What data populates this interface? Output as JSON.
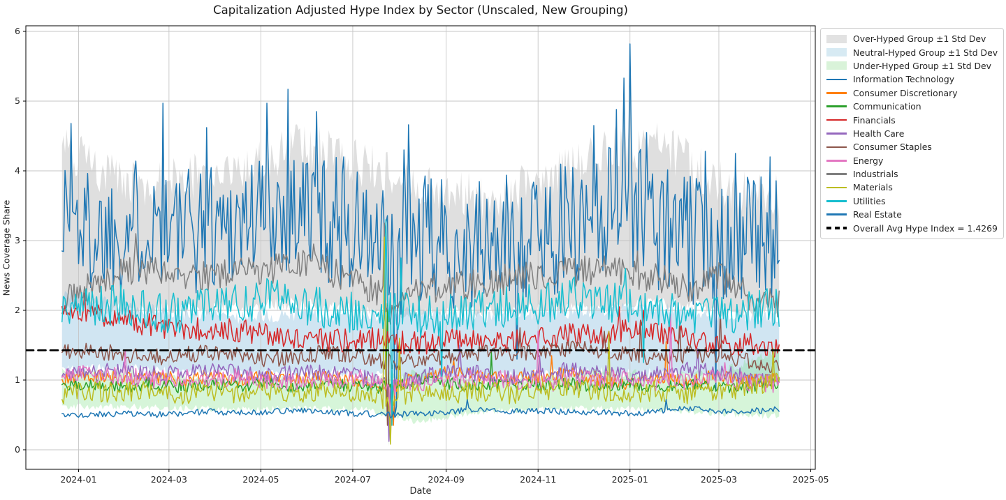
{
  "chart_data": {
    "type": "line",
    "title": "Capitalization Adjusted Hype Index by Sector (Unscaled, New Grouping)",
    "xlabel": "Date",
    "ylabel": "News Coverage Share",
    "grid": true,
    "legend_position": "outside-upper-right",
    "x_start": "2023-12-21",
    "x_end": "2025-04-10",
    "xlim": [
      "2023-11-27",
      "2025-05-04"
    ],
    "ylim": [
      -0.28,
      6.08
    ],
    "y_ticks": [
      0,
      1,
      2,
      3,
      4,
      5,
      6
    ],
    "x_ticks": [
      {
        "label": "2024-01",
        "date": "2024-01-01"
      },
      {
        "label": "2024-03",
        "date": "2024-03-01"
      },
      {
        "label": "2024-05",
        "date": "2024-05-01"
      },
      {
        "label": "2024-07",
        "date": "2024-07-01"
      },
      {
        "label": "2024-09",
        "date": "2024-09-01"
      },
      {
        "label": "2024-11",
        "date": "2024-11-01"
      },
      {
        "label": "2025-01",
        "date": "2025-01-01"
      },
      {
        "label": "2025-03",
        "date": "2025-03-01"
      },
      {
        "label": "2025-05",
        "date": "2025-05-01"
      }
    ],
    "avg_line": {
      "label": "Overall Avg Hype Index = 1.4269",
      "value": 1.4269,
      "color": "#000000",
      "style": "dashed"
    },
    "noise_seed": 1337,
    "bands": [
      {
        "name": "Over-Hyped Group ±1 Std Dev",
        "legend_color": "#e2e2e2",
        "fill": "rgba(130,130,130,0.26)",
        "lower": [
          2.0,
          2.05,
          2.0,
          2.05,
          2.1,
          2.0,
          1.95,
          2.0,
          2.0,
          2.05,
          2.1,
          2.0,
          1.95
        ],
        "upper": [
          4.4,
          3.8,
          3.9,
          4.0,
          4.4,
          4.1,
          3.8,
          3.6,
          3.8,
          4.3,
          4.4,
          3.8,
          3.6
        ],
        "lower_noise": 0.1,
        "upper_noise": 0.35,
        "lower_spikes": [
          [
            "2024-07-28",
            1.35
          ]
        ],
        "upper_spikes": [
          [
            "2023-12-27",
            4.55
          ],
          [
            "2024-02-26",
            4.8
          ],
          [
            "2024-05-19",
            4.9
          ],
          [
            "2024-07-22",
            3.6
          ],
          [
            "2024-12-28",
            5.15
          ],
          [
            "2025-01-01",
            5.5
          ]
        ]
      },
      {
        "name": "Neutral-Hyped Group ±1 Std Dev",
        "legend_color": "#d7eaf3",
        "fill": "rgba(137,190,222,0.40)",
        "lower": [
          1.15,
          1.18,
          1.12,
          1.1,
          1.12,
          1.1,
          1.0,
          1.05,
          1.1,
          1.12,
          1.1,
          1.05,
          1.0
        ],
        "upper": [
          2.25,
          2.05,
          1.95,
          1.9,
          1.95,
          1.9,
          2.0,
          1.9,
          1.95,
          2.0,
          2.05,
          1.95,
          1.9
        ],
        "lower_noise": 0.07,
        "upper_noise": 0.1,
        "lower_spikes": [
          [
            "2024-07-27",
            0.45
          ]
        ],
        "upper_spikes": [
          [
            "2024-07-25",
            2.4
          ]
        ]
      },
      {
        "name": "Under-Hyped Group ±1 Std Dev",
        "legend_color": "#d9f3d9",
        "fill": "rgba(120,222,130,0.30)",
        "lower": [
          0.62,
          0.62,
          0.6,
          0.58,
          0.6,
          0.58,
          0.4,
          0.55,
          0.58,
          0.6,
          0.58,
          0.52,
          0.48
        ],
        "upper": [
          1.12,
          1.1,
          1.05,
          1.0,
          1.02,
          1.0,
          1.1,
          1.0,
          1.05,
          1.15,
          1.05,
          1.1,
          1.45
        ],
        "lower_noise": 0.05,
        "upper_noise": 0.07,
        "lower_spikes": [
          [
            "2024-07-25",
            0.05
          ]
        ],
        "upper_spikes": [
          [
            "2024-07-25",
            1.35
          ]
        ]
      }
    ],
    "series": [
      {
        "name": "Information Technology",
        "color": "#1f77b4",
        "noise": 0.95,
        "anchors": [
          3.45,
          3.1,
          3.2,
          3.35,
          3.1,
          3.25,
          3.3,
          3.45,
          3.5,
          3.3,
          3.1,
          2.7,
          3.0,
          2.95,
          2.9,
          3.0,
          3.1,
          3.2,
          3.45,
          3.6,
          3.2,
          3.0,
          3.1,
          3.0,
          3.05
        ],
        "spikes": [
          [
            "2023-12-27",
            4.68
          ],
          [
            "2024-02-26",
            4.97
          ],
          [
            "2024-03-26",
            4.62
          ],
          [
            "2024-05-05",
            4.97
          ],
          [
            "2024-05-19",
            5.17
          ],
          [
            "2024-06-07",
            4.85
          ],
          [
            "2024-06-25",
            4.2
          ],
          [
            "2024-07-29",
            0.5
          ],
          [
            "2024-07-30",
            0.62
          ],
          [
            "2024-08-04",
            4.3
          ],
          [
            "2024-08-07",
            4.66
          ],
          [
            "2024-10-18",
            1.3
          ],
          [
            "2024-12-08",
            4.65
          ],
          [
            "2024-12-23",
            4.88
          ],
          [
            "2024-12-28",
            5.33
          ],
          [
            "2025-01-01",
            5.82
          ],
          [
            "2025-01-12",
            4.55
          ],
          [
            "2025-02-20",
            4.28
          ],
          [
            "2025-02-27",
            0.85
          ],
          [
            "2025-03-12",
            4.25
          ],
          [
            "2025-04-04",
            4.2
          ]
        ]
      },
      {
        "name": "Consumer Discretionary",
        "color": "#ff7f0e",
        "noise": 0.1,
        "anchors": [
          1.0,
          1.05,
          1.02,
          1.06,
          1.0,
          1.05,
          1.0,
          1.06,
          1.0,
          1.05,
          1.0,
          0.9,
          1.05,
          1.1,
          1.05,
          1.0,
          1.05,
          1.1,
          1.02,
          0.95,
          1.05,
          1.0,
          1.05,
          1.0,
          1.0
        ],
        "spikes": [
          [
            "2024-07-28",
            0.35
          ],
          [
            "2024-09-06",
            1.3
          ],
          [
            "2024-11-10",
            1.35
          ],
          [
            "2025-01-25",
            1.55
          ]
        ]
      },
      {
        "name": "Communication",
        "color": "#2ca02c",
        "noise": 0.09,
        "anchors": [
          0.9,
          0.95,
          0.9,
          0.95,
          0.9,
          0.95,
          0.92,
          0.95,
          0.9,
          0.95,
          0.9,
          0.9,
          1.0,
          0.95,
          0.9,
          0.95,
          0.92,
          0.95,
          0.9,
          0.95,
          0.9,
          0.95,
          0.9,
          0.9,
          0.95
        ],
        "spikes": [
          [
            "2024-07-24",
            2.1
          ],
          [
            "2024-07-27",
            0.45
          ],
          [
            "2024-10-01",
            1.4
          ]
        ]
      },
      {
        "name": "Financials",
        "color": "#d62728",
        "noise": 0.17,
        "anchors": [
          1.9,
          1.95,
          1.85,
          1.8,
          1.72,
          1.75,
          1.7,
          1.66,
          1.6,
          1.55,
          1.6,
          1.55,
          1.52,
          1.56,
          1.6,
          1.55,
          1.6,
          1.65,
          1.62,
          1.72,
          1.65,
          1.6,
          1.55,
          1.5,
          1.45
        ],
        "spikes": [
          [
            "2024-01-05",
            2.25
          ],
          [
            "2024-12-25",
            2.05
          ],
          [
            "2025-01-10",
            2.0
          ]
        ]
      },
      {
        "name": "Health Care",
        "color": "#9467bd",
        "noise": 0.12,
        "anchors": [
          1.12,
          1.1,
          1.15,
          1.1,
          1.1,
          1.14,
          1.1,
          1.06,
          1.1,
          1.1,
          1.05,
          0.95,
          1.05,
          1.1,
          1.1,
          1.05,
          1.1,
          1.15,
          1.1,
          1.05,
          1.1,
          1.15,
          1.1,
          1.05,
          1.0
        ],
        "spikes": [
          [
            "2024-07-25",
            0.12
          ],
          [
            "2024-09-10",
            1.5
          ],
          [
            "2024-11-02",
            1.35
          ],
          [
            "2025-02-15",
            1.45
          ]
        ]
      },
      {
        "name": "Consumer Staples",
        "color": "#8c564b",
        "noise": 0.12,
        "anchors": [
          1.4,
          1.42,
          1.38,
          1.32,
          1.36,
          1.4,
          1.35,
          1.3,
          1.35,
          1.4,
          1.35,
          1.25,
          1.3,
          1.35,
          1.4,
          1.38,
          1.42,
          1.45,
          1.42,
          1.36,
          1.3,
          1.38,
          1.35,
          1.28,
          1.2
        ],
        "spikes": [
          [
            "2024-07-24",
            0.35
          ],
          [
            "2024-10-20",
            1.75
          ],
          [
            "2024-12-15",
            1.7
          ],
          [
            "2025-01-08",
            1.85
          ],
          [
            "2025-02-03",
            1.85
          ],
          [
            "2025-03-02",
            1.98
          ]
        ]
      },
      {
        "name": "Energy",
        "color": "#e377c2",
        "noise": 0.14,
        "anchors": [
          1.08,
          1.1,
          1.05,
          1.0,
          1.05,
          1.0,
          1.05,
          1.0,
          0.95,
          1.0,
          1.05,
          0.85,
          0.95,
          1.0,
          1.05,
          1.0,
          0.95,
          1.0,
          1.02,
          1.0,
          0.95,
          1.0,
          1.02,
          0.98,
          0.95
        ],
        "spikes": [
          [
            "2024-02-01",
            1.42
          ],
          [
            "2024-07-26",
            0.3
          ],
          [
            "2024-11-01",
            1.7
          ],
          [
            "2025-01-28",
            1.95
          ],
          [
            "2025-03-05",
            1.25
          ]
        ]
      },
      {
        "name": "Industrials",
        "color": "#7f7f7f",
        "noise": 0.22,
        "anchors": [
          2.1,
          2.4,
          2.55,
          2.6,
          2.45,
          2.5,
          2.55,
          2.6,
          2.65,
          2.55,
          2.4,
          2.1,
          2.3,
          2.35,
          2.4,
          2.45,
          2.5,
          2.55,
          2.6,
          2.5,
          2.45,
          2.3,
          2.5,
          2.2,
          2.1
        ],
        "spikes": [
          [
            "2024-02-08",
            3.1
          ],
          [
            "2024-06-05",
            2.95
          ],
          [
            "2024-07-22",
            3.25
          ],
          [
            "2024-07-26",
            1.8
          ],
          [
            "2025-01-06",
            2.85
          ]
        ]
      },
      {
        "name": "Materials",
        "color": "#bcbd22",
        "noise": 0.15,
        "anchors": [
          0.8,
          0.85,
          0.8,
          0.85,
          0.8,
          0.85,
          0.8,
          0.85,
          0.8,
          0.85,
          0.8,
          0.7,
          0.85,
          0.8,
          0.85,
          0.8,
          0.85,
          0.9,
          0.85,
          0.8,
          0.85,
          0.8,
          0.85,
          0.9,
          1.0
        ],
        "spikes": [
          [
            "2024-07-22",
            3.05
          ],
          [
            "2024-07-26",
            0.08
          ],
          [
            "2024-08-01",
            1.6
          ],
          [
            "2024-12-18",
            1.7
          ],
          [
            "2025-04-06",
            1.45
          ]
        ]
      },
      {
        "name": "Utilities",
        "color": "#17becf",
        "noise": 0.3,
        "anchors": [
          1.95,
          2.05,
          2.1,
          2.0,
          1.95,
          2.05,
          2.1,
          2.2,
          2.1,
          2.0,
          1.95,
          2.0,
          1.9,
          1.95,
          2.0,
          2.05,
          2.1,
          2.2,
          2.15,
          2.05,
          2.0,
          1.95,
          1.9,
          2.0,
          2.05
        ],
        "spikes": [
          [
            "2024-07-23",
            3.3
          ],
          [
            "2024-07-27",
            0.35
          ],
          [
            "2024-08-02",
            2.75
          ],
          [
            "2024-08-29",
            1.05
          ],
          [
            "2024-12-29",
            2.6
          ],
          [
            "2025-01-10",
            1.25
          ],
          [
            "2025-04-08",
            2.3
          ]
        ]
      },
      {
        "name": "Real Estate",
        "color": "#1f77b4",
        "noise": 0.045,
        "anchors": [
          0.48,
          0.5,
          0.52,
          0.5,
          0.52,
          0.55,
          0.53,
          0.55,
          0.56,
          0.54,
          0.52,
          0.5,
          0.52,
          0.55,
          0.57,
          0.55,
          0.56,
          0.55,
          0.54,
          0.52,
          0.55,
          0.6,
          0.55,
          0.55,
          0.58
        ],
        "spikes": [
          [
            "2024-09-15",
            0.72
          ],
          [
            "2025-01-25",
            0.72
          ]
        ]
      }
    ]
  }
}
